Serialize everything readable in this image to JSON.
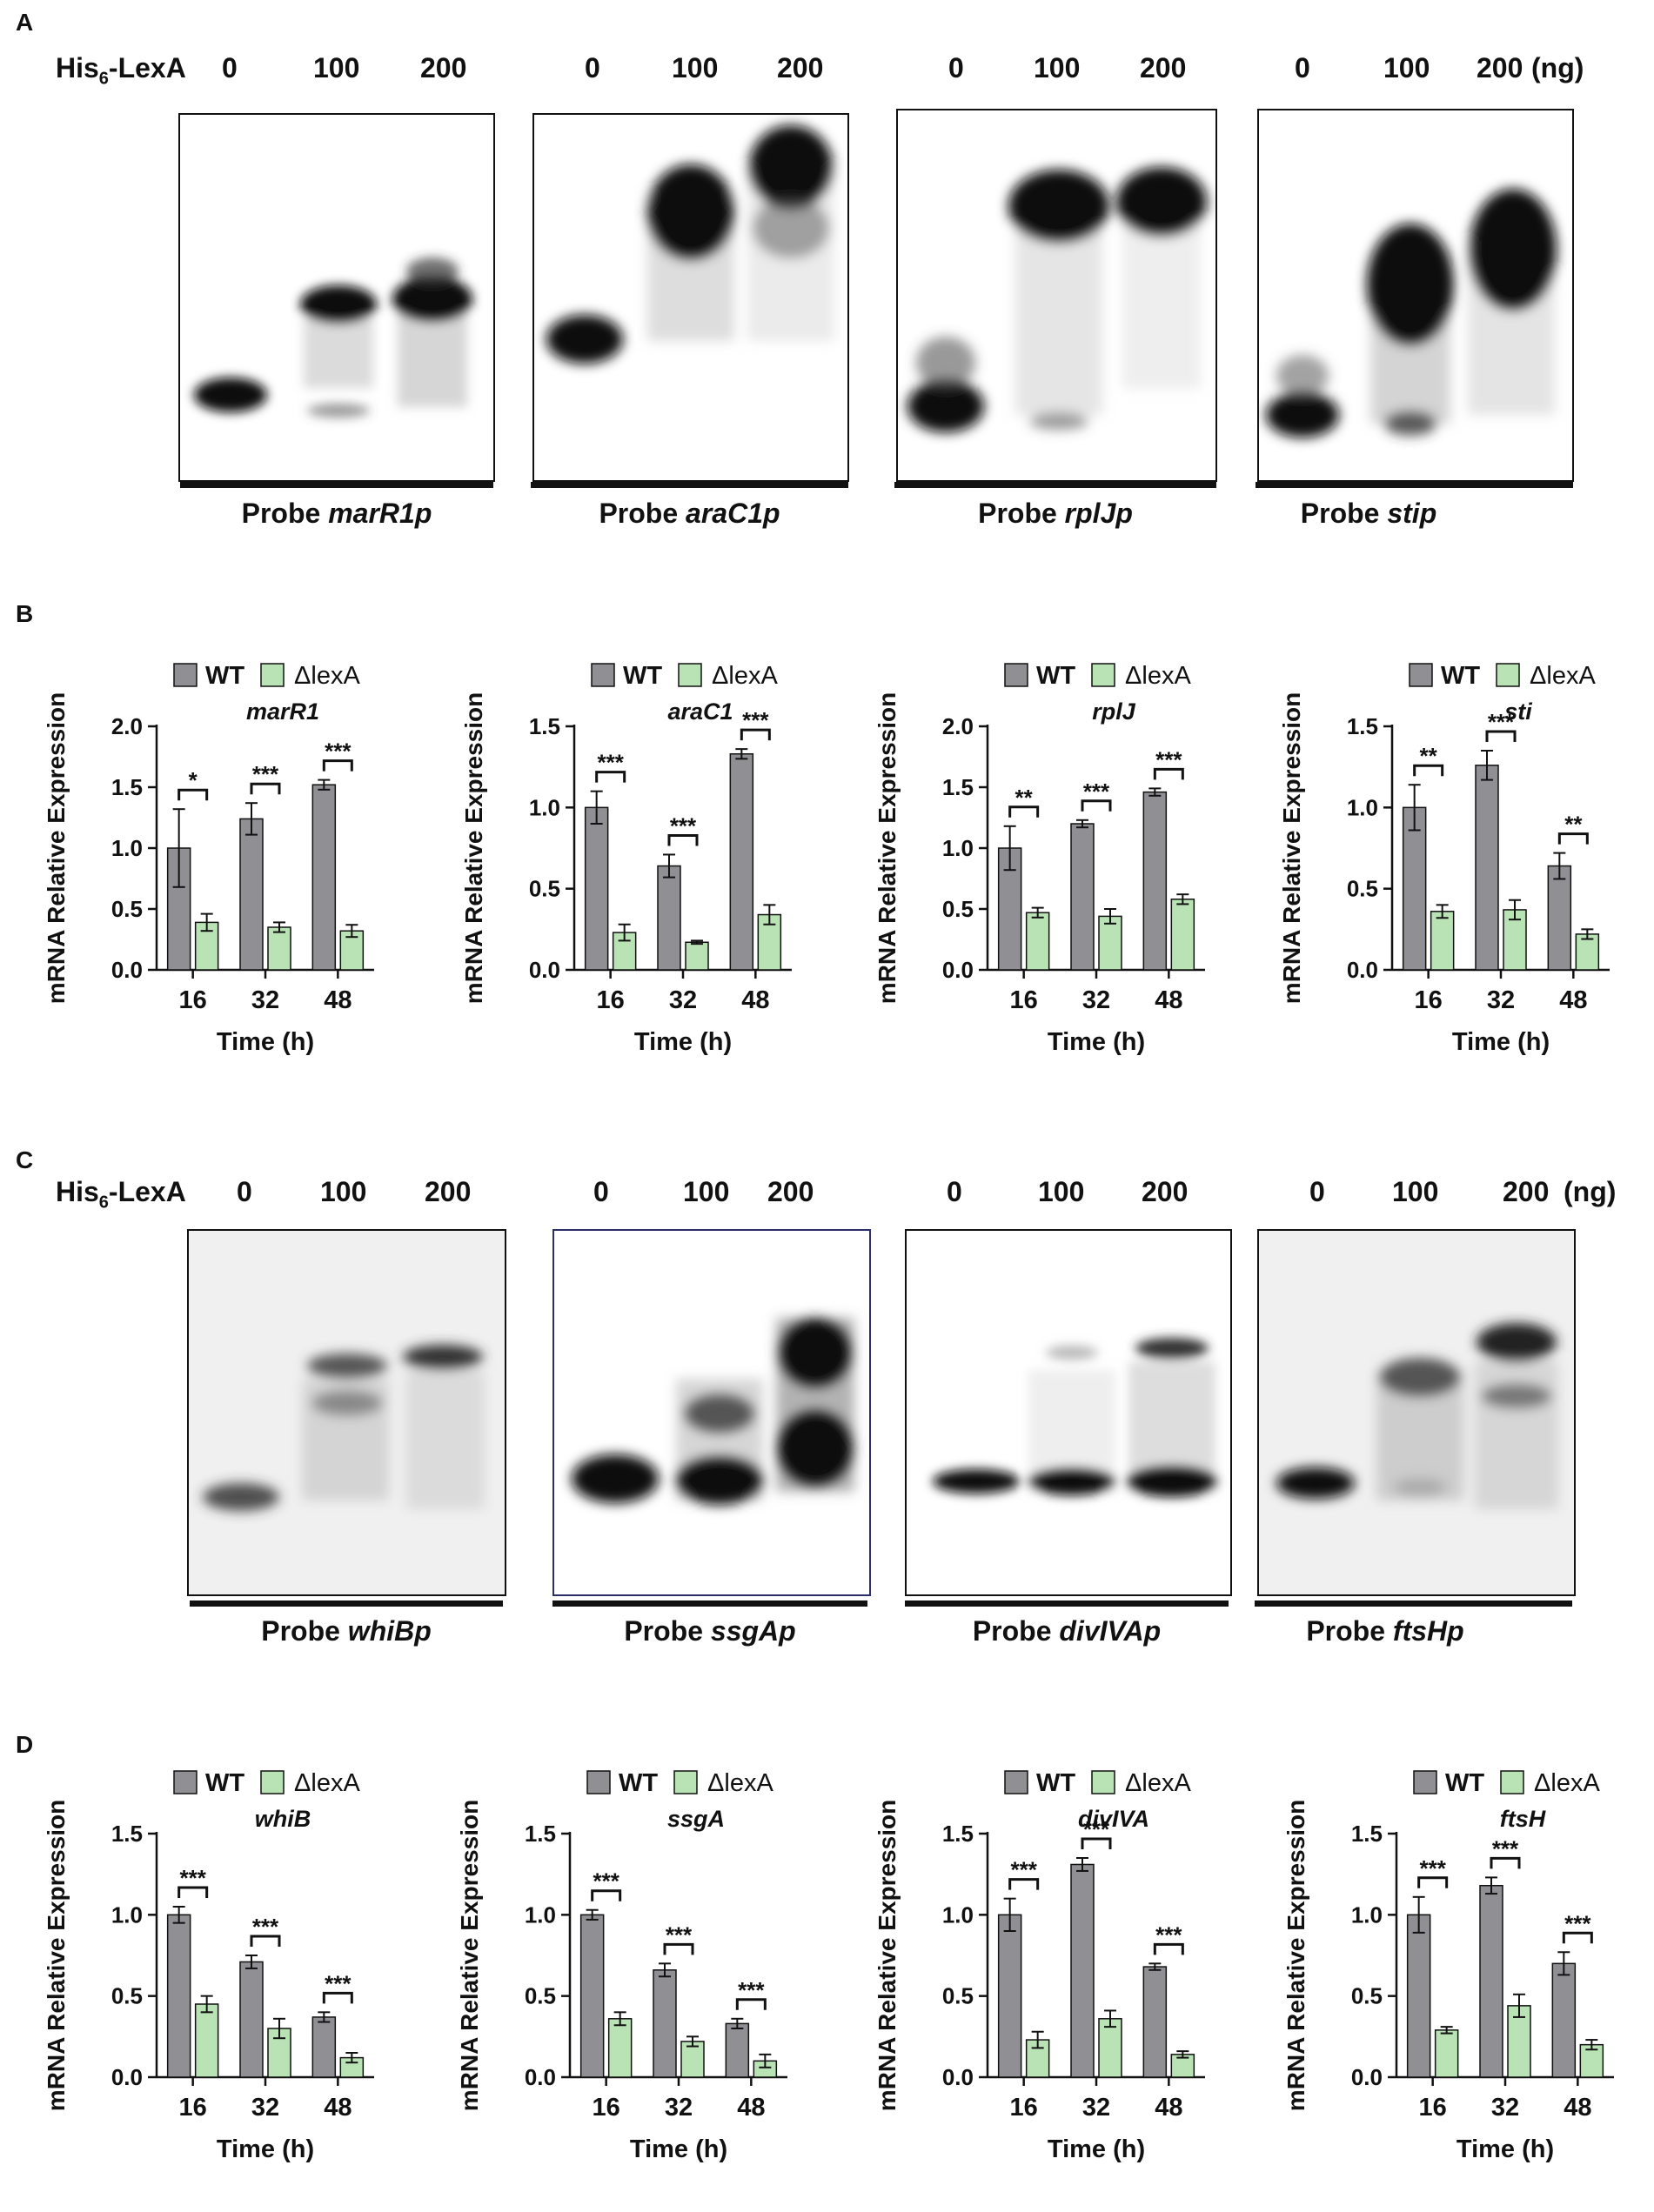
{
  "panelA": {
    "letter": "A",
    "header": {
      "protein": "His",
      "subscript": "6",
      "suffix": "-LexA",
      "unit": "(ng)",
      "doses": [
        "0",
        "100",
        "200"
      ]
    },
    "probes": [
      {
        "prefix": "Probe ",
        "name": "marR1p"
      },
      {
        "prefix": "Probe ",
        "name": "araC1p"
      },
      {
        "prefix": "Probe ",
        "name": "rplJp"
      },
      {
        "prefix": "Probe ",
        "name": "stip"
      }
    ]
  },
  "panelB": {
    "letter": "B"
  },
  "panelC": {
    "letter": "C",
    "header": {
      "protein": "His",
      "subscript": "6",
      "suffix": "-LexA",
      "unit": "(ng)",
      "doses": [
        "0",
        "100",
        "200"
      ]
    },
    "probes": [
      {
        "prefix": "Probe ",
        "name": "whiBp"
      },
      {
        "prefix": "Probe ",
        "name": "ssgAp"
      },
      {
        "prefix": "Probe ",
        "name": "divIVAp"
      },
      {
        "prefix": "Probe ",
        "name": "ftsHp"
      }
    ]
  },
  "panelD": {
    "letter": "D"
  },
  "colors": {
    "wt": "#8f8f94",
    "lexA": "#b9e3b5",
    "stroke": "#111111"
  },
  "chart_data": [
    {
      "panel": "B",
      "type": "bar",
      "title": "marR1",
      "categories": [
        "16",
        "32",
        "48"
      ],
      "series": [
        {
          "name": "WT",
          "values": [
            1.0,
            1.24,
            1.52
          ],
          "errors": [
            0.32,
            0.13,
            0.04
          ]
        },
        {
          "name": "ΔlexA",
          "values": [
            0.39,
            0.35,
            0.32
          ],
          "errors": [
            0.07,
            0.04,
            0.05
          ]
        }
      ],
      "ylim": [
        0,
        2.0
      ],
      "yticks": [
        "0.0",
        "0.5",
        "1.0",
        "1.5",
        "2.0"
      ],
      "significance": [
        "*",
        "***",
        "***"
      ],
      "xlabel": "Time (h)",
      "ylabel": "mRNA Relative Expression"
    },
    {
      "panel": "B",
      "type": "bar",
      "title": "araC1",
      "categories": [
        "16",
        "32",
        "48"
      ],
      "series": [
        {
          "name": "WT",
          "values": [
            1.0,
            0.64,
            1.33
          ],
          "errors": [
            0.1,
            0.07,
            0.03
          ]
        },
        {
          "name": "ΔlexA",
          "values": [
            0.23,
            0.17,
            0.34
          ],
          "errors": [
            0.05,
            0.01,
            0.06
          ]
        }
      ],
      "ylim": [
        0,
        1.5
      ],
      "yticks": [
        "0.0",
        "0.5",
        "1.0",
        "1.5"
      ],
      "significance": [
        "***",
        "***",
        "***"
      ],
      "xlabel": "Time (h)",
      "ylabel": "mRNA Relative Expression"
    },
    {
      "panel": "B",
      "type": "bar",
      "title": "rplJ",
      "categories": [
        "16",
        "32",
        "48"
      ],
      "series": [
        {
          "name": "WT",
          "values": [
            1.0,
            1.2,
            1.46
          ],
          "errors": [
            0.18,
            0.03,
            0.03
          ]
        },
        {
          "name": "ΔlexA",
          "values": [
            0.47,
            0.44,
            0.58
          ],
          "errors": [
            0.04,
            0.06,
            0.04
          ]
        }
      ],
      "ylim": [
        0,
        2.0
      ],
      "yticks": [
        "0.0",
        "0.5",
        "1.0",
        "1.5",
        "2.0"
      ],
      "significance": [
        "**",
        "***",
        "***"
      ],
      "xlabel": "Time (h)",
      "ylabel": "mRNA Relative Expression"
    },
    {
      "panel": "B",
      "type": "bar",
      "title": "sti",
      "categories": [
        "16",
        "32",
        "48"
      ],
      "series": [
        {
          "name": "WT",
          "values": [
            1.0,
            1.26,
            0.64
          ],
          "errors": [
            0.14,
            0.09,
            0.08
          ]
        },
        {
          "name": "ΔlexA",
          "values": [
            0.36,
            0.37,
            0.22
          ],
          "errors": [
            0.04,
            0.06,
            0.03
          ]
        }
      ],
      "ylim": [
        0,
        1.5
      ],
      "yticks": [
        "0.0",
        "0.5",
        "1.0",
        "1.5"
      ],
      "significance": [
        "**",
        "***",
        "**"
      ],
      "xlabel": "Time (h)",
      "ylabel": "mRNA Relative Expression"
    },
    {
      "panel": "D",
      "type": "bar",
      "title": "whiB",
      "categories": [
        "16",
        "32",
        "48"
      ],
      "series": [
        {
          "name": "WT",
          "values": [
            1.0,
            0.71,
            0.37
          ],
          "errors": [
            0.05,
            0.04,
            0.03
          ]
        },
        {
          "name": "ΔlexA",
          "values": [
            0.45,
            0.3,
            0.12
          ],
          "errors": [
            0.05,
            0.06,
            0.03
          ]
        }
      ],
      "ylim": [
        0,
        1.5
      ],
      "yticks": [
        "0.0",
        "0.5",
        "1.0",
        "1.5"
      ],
      "significance": [
        "***",
        "***",
        "***"
      ],
      "xlabel": "Time (h)",
      "ylabel": "mRNA Relative Expression"
    },
    {
      "panel": "D",
      "type": "bar",
      "title": "ssgA",
      "categories": [
        "16",
        "32",
        "48"
      ],
      "series": [
        {
          "name": "WT",
          "values": [
            1.0,
            0.66,
            0.33
          ],
          "errors": [
            0.03,
            0.04,
            0.03
          ]
        },
        {
          "name": "ΔlexA",
          "values": [
            0.36,
            0.22,
            0.1
          ],
          "errors": [
            0.04,
            0.03,
            0.04
          ]
        }
      ],
      "ylim": [
        0,
        1.5
      ],
      "yticks": [
        "0.0",
        "0.5",
        "1.0",
        "1.5"
      ],
      "significance": [
        "***",
        "***",
        "***"
      ],
      "xlabel": "Time (h)",
      "ylabel": "mRNA Relative Expression"
    },
    {
      "panel": "D",
      "type": "bar",
      "title": "divIVA",
      "categories": [
        "16",
        "32",
        "48"
      ],
      "series": [
        {
          "name": "WT",
          "values": [
            1.0,
            1.31,
            0.68
          ],
          "errors": [
            0.1,
            0.04,
            0.02
          ]
        },
        {
          "name": "ΔlexA",
          "values": [
            0.23,
            0.36,
            0.14
          ],
          "errors": [
            0.05,
            0.05,
            0.02
          ]
        }
      ],
      "ylim": [
        0,
        1.5
      ],
      "yticks": [
        "0.0",
        "0.5",
        "1.0",
        "1.5"
      ],
      "significance": [
        "***",
        "***",
        "***"
      ],
      "xlabel": "Time (h)",
      "ylabel": "mRNA Relative Expression"
    },
    {
      "panel": "D",
      "type": "bar",
      "title": "ftsH",
      "categories": [
        "16",
        "32",
        "48"
      ],
      "series": [
        {
          "name": "WT",
          "values": [
            1.0,
            1.18,
            0.7
          ],
          "errors": [
            0.11,
            0.05,
            0.07
          ]
        },
        {
          "name": "ΔlexA",
          "values": [
            0.29,
            0.44,
            0.2
          ],
          "errors": [
            0.02,
            0.07,
            0.03
          ]
        }
      ],
      "ylim": [
        0,
        1.5
      ],
      "yticks": [
        "0.0",
        "0.5",
        "1.0",
        "1.5"
      ],
      "significance": [
        "***",
        "***",
        "***"
      ],
      "xlabel": "Time (h)",
      "ylabel": "mRNA Relative Expression"
    }
  ]
}
